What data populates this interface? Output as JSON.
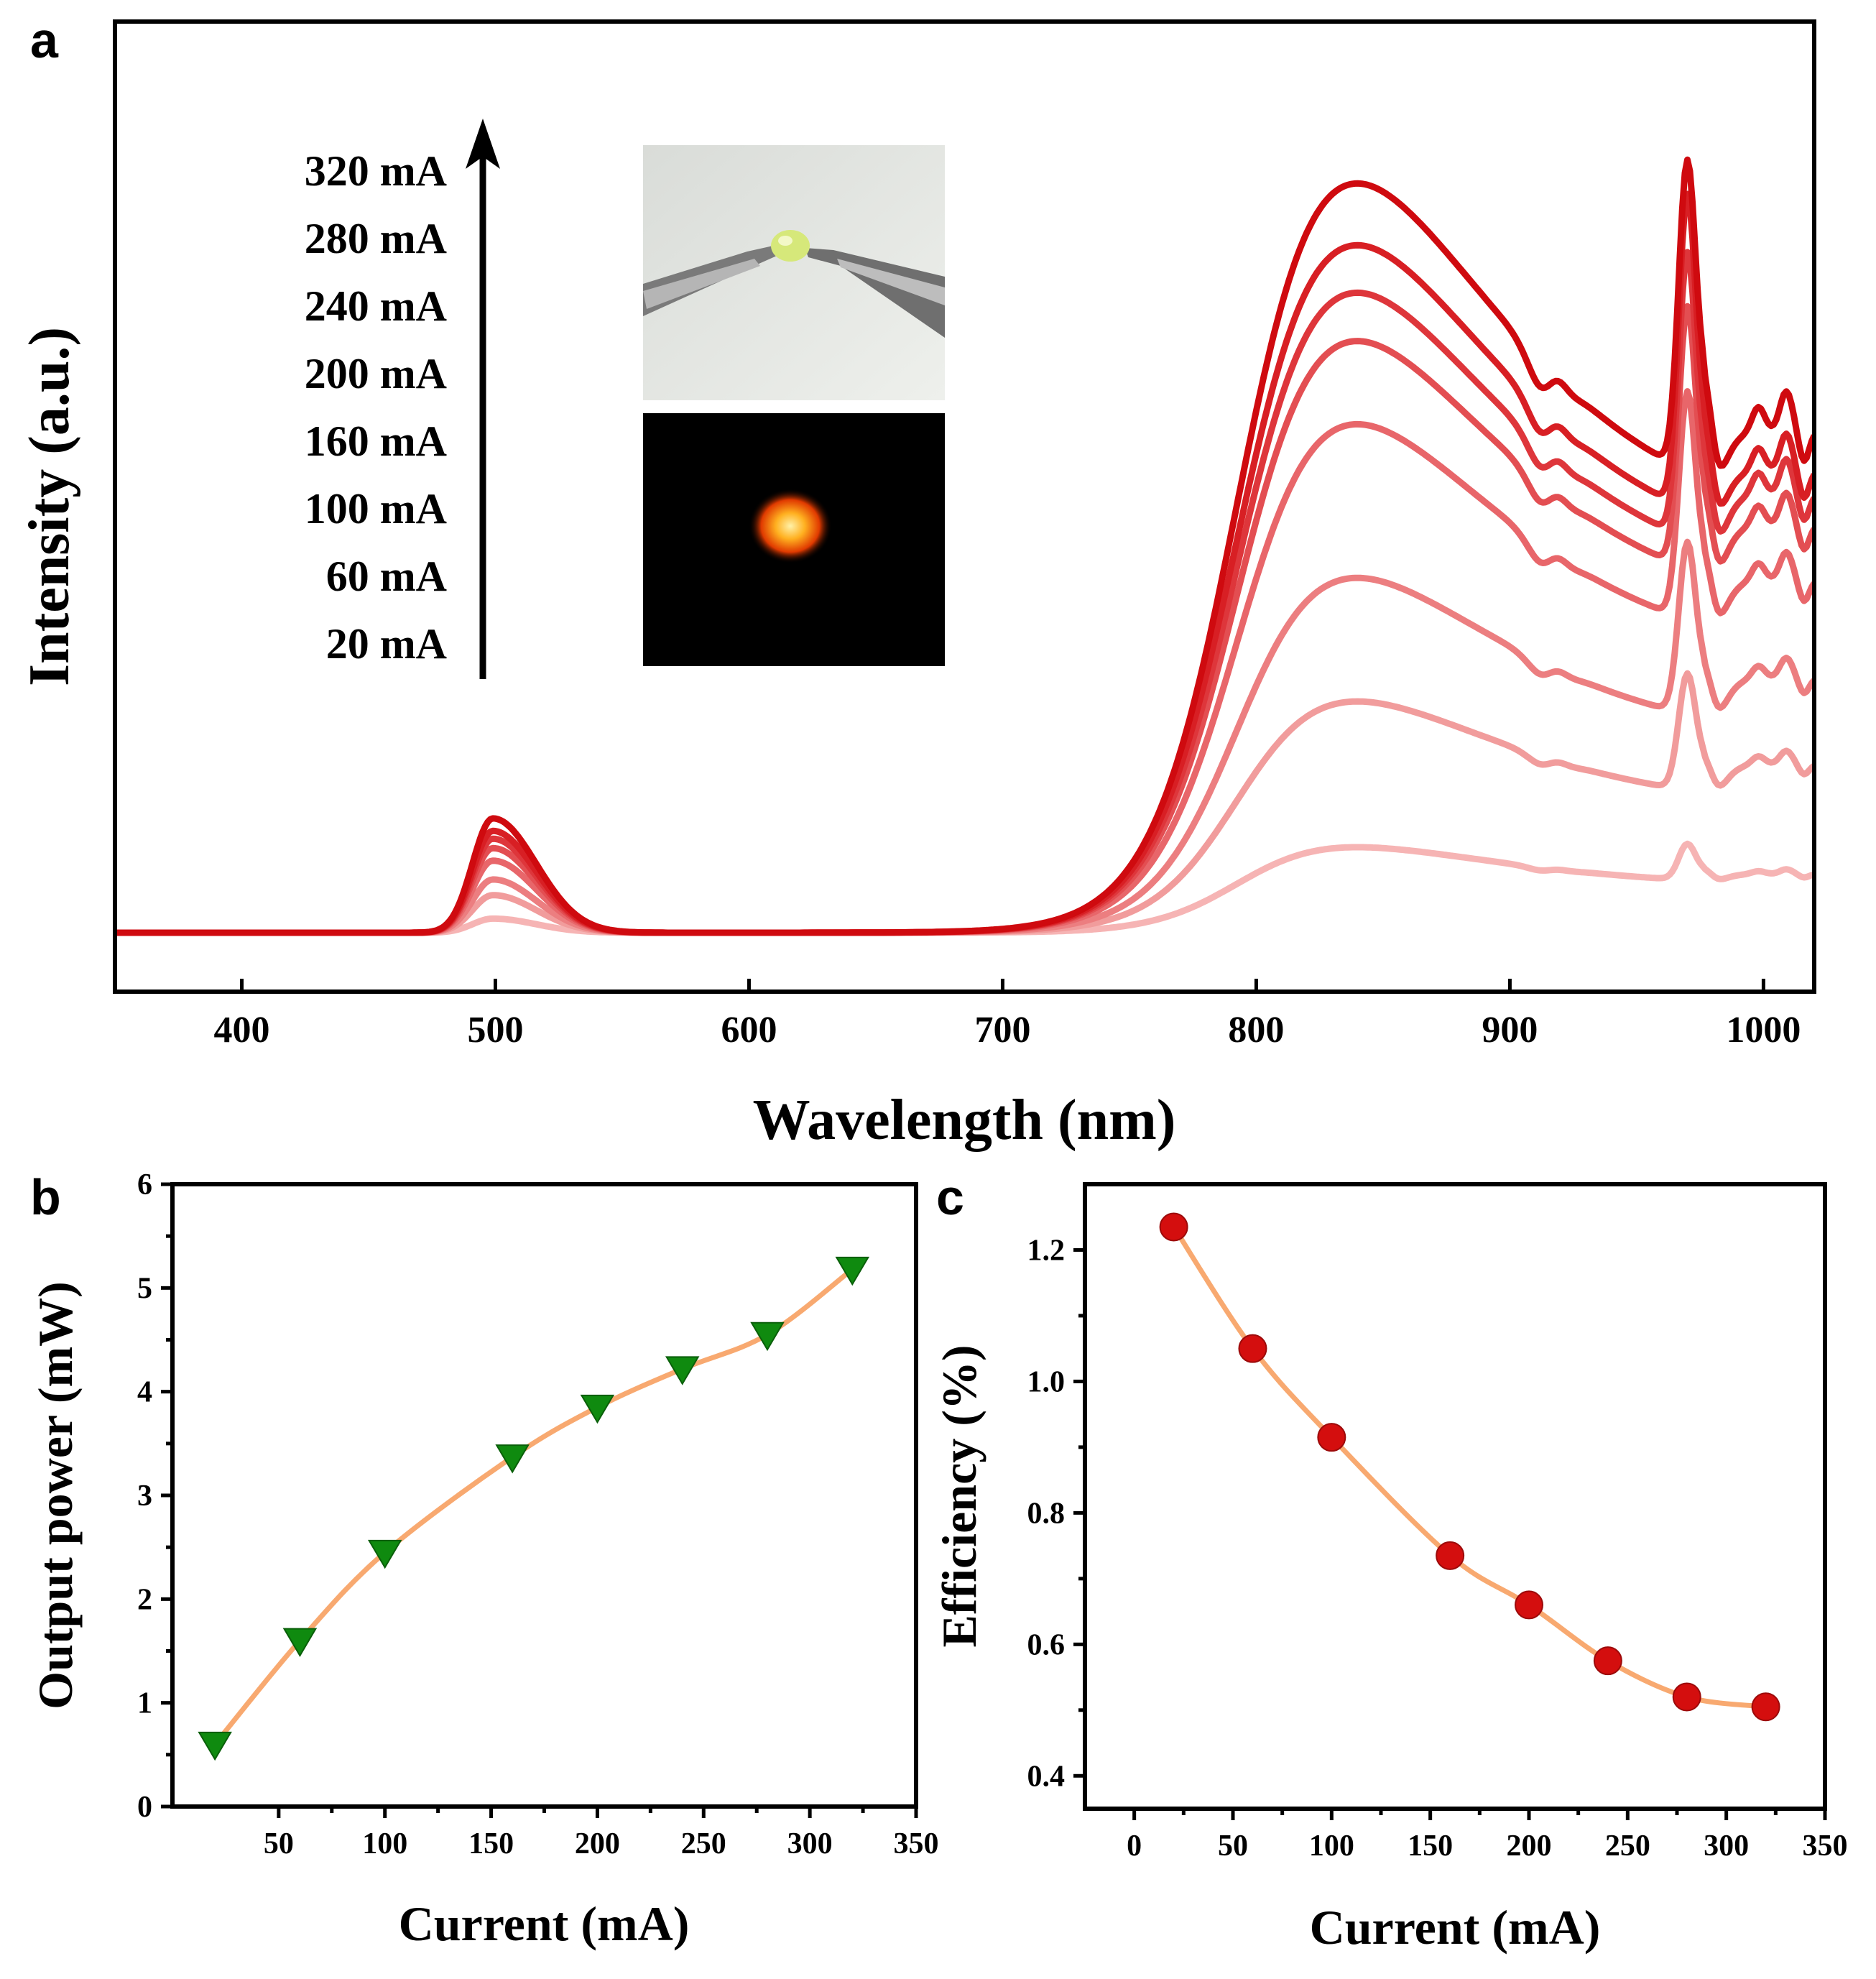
{
  "panels": {
    "a": "a",
    "b": "b",
    "c": "c"
  },
  "colors": {
    "spectra": [
      "#f6b4b4",
      "#f19c9c",
      "#ec7e80",
      "#e8666a",
      "#e34e52",
      "#de363b",
      "#d81f24",
      "#cf0a0f"
    ],
    "triangle": "#0f8a0f",
    "circle": "#d40e0e",
    "fit_line": "#f8a970"
  },
  "chart_data": [
    {
      "id": "a",
      "type": "line",
      "title": "",
      "xlabel": "Wavelength (nm)",
      "ylabel": "Intensity (a.u.)",
      "xlim": [
        350,
        1020
      ],
      "ylim": [
        0,
        1
      ],
      "xticks": [
        400,
        500,
        600,
        700,
        800,
        900,
        1000
      ],
      "yticks": [],
      "legend_annotation": [
        "320 mA",
        "280 mA",
        "240 mA",
        "200 mA",
        "160 mA",
        "100 mA",
        "60 mA",
        "20 mA"
      ],
      "series": [
        {
          "name": "20 mA",
          "peak_500": 0.018,
          "peak_850": 0.108,
          "val_945": 0.052,
          "peak_970": 0.115,
          "tail": 0.075
        },
        {
          "name": "60 mA",
          "peak_500": 0.048,
          "peak_850": 0.292,
          "val_945": 0.168,
          "peak_970": 0.335,
          "tail": 0.215
        },
        {
          "name": "100 mA",
          "peak_500": 0.068,
          "peak_850": 0.448,
          "val_945": 0.265,
          "peak_970": 0.505,
          "tail": 0.325
        },
        {
          "name": "160 mA",
          "peak_500": 0.092,
          "peak_850": 0.642,
          "val_945": 0.363,
          "peak_970": 0.7,
          "tail": 0.45
        },
        {
          "name": "200 mA",
          "peak_500": 0.108,
          "peak_850": 0.747,
          "val_945": 0.415,
          "peak_970": 0.81,
          "tail": 0.52
        },
        {
          "name": "240 mA",
          "peak_500": 0.12,
          "peak_850": 0.808,
          "val_945": 0.448,
          "peak_970": 0.88,
          "tail": 0.56
        },
        {
          "name": "280 mA",
          "peak_500": 0.13,
          "peak_850": 0.868,
          "val_945": 0.49,
          "peak_970": 0.955,
          "tail": 0.59
        },
        {
          "name": "320 mA",
          "peak_500": 0.146,
          "peak_850": 0.946,
          "val_945": 0.545,
          "peak_970": 1.0,
          "tail": 0.64
        }
      ]
    },
    {
      "id": "b",
      "type": "scatter",
      "title": "",
      "xlabel": "Current (mA)",
      "ylabel": "Output power (mW)",
      "xlim": [
        0,
        350
      ],
      "ylim": [
        0,
        6
      ],
      "xticks": [
        50,
        100,
        150,
        200,
        250,
        300,
        350
      ],
      "yticks": [
        0,
        1,
        2,
        3,
        4,
        5,
        6
      ],
      "x": [
        20,
        60,
        100,
        160,
        200,
        240,
        280,
        320
      ],
      "y": [
        0.6,
        1.6,
        2.45,
        3.37,
        3.85,
        4.22,
        4.55,
        5.18
      ]
    },
    {
      "id": "c",
      "type": "scatter",
      "title": "",
      "xlabel": "Current (mA)",
      "ylabel": "Efficiency (%)",
      "xlim": [
        -25,
        350
      ],
      "ylim": [
        0.35,
        1.3
      ],
      "xticks": [
        0,
        50,
        100,
        150,
        200,
        250,
        300,
        350
      ],
      "yticks": [
        0.4,
        0.6,
        0.8,
        1.0,
        1.2
      ],
      "ytick_labels": [
        "0.4",
        "0.6",
        "0.8",
        "1.0",
        "1.2"
      ],
      "x": [
        20,
        60,
        100,
        160,
        200,
        240,
        280,
        320
      ],
      "y": [
        1.235,
        1.05,
        0.915,
        0.735,
        0.66,
        0.575,
        0.52,
        0.505
      ]
    }
  ]
}
